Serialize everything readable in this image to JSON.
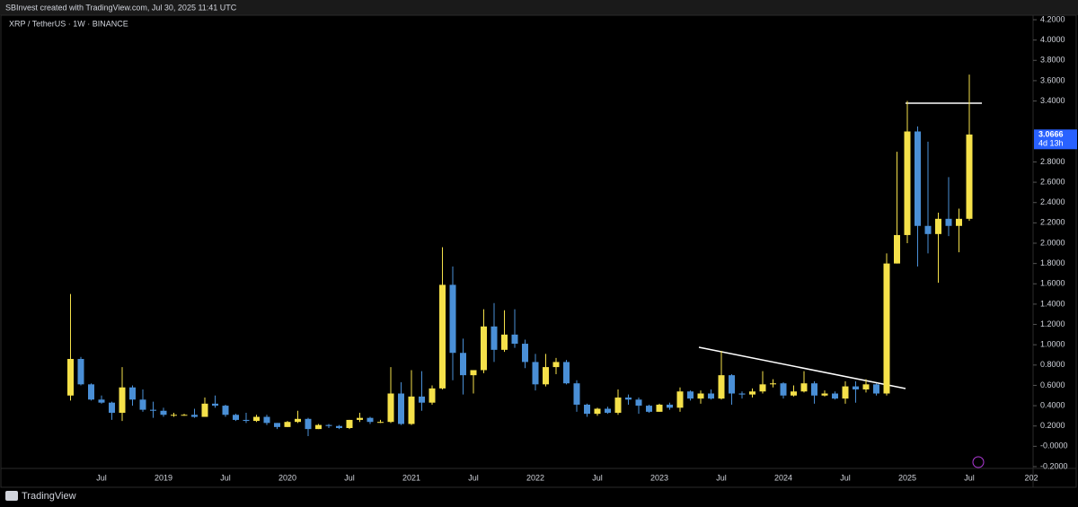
{
  "header": "SBInvest created with TradingView.com, Jul 30, 2025 11:41 UTC",
  "footer": "TradingView",
  "chart_data": {
    "type": "candlestick",
    "title": "XRP / TetherUS · 1W · BINANCE",
    "categories": [
      null,
      null,
      null,
      "Jul",
      null,
      null,
      null,
      null,
      null,
      "2019",
      null,
      null,
      null,
      null,
      null,
      "Jul",
      null,
      null,
      null,
      null,
      null,
      "2020",
      null,
      null,
      null,
      null,
      null,
      "Jul",
      null,
      null,
      null,
      null,
      null,
      "2021",
      null,
      null,
      null,
      null,
      null,
      "Jul",
      null,
      null,
      null,
      null,
      null,
      "2022",
      null,
      null,
      null,
      null,
      null,
      "Jul",
      null,
      null,
      null,
      null,
      null,
      "2023",
      null,
      null,
      null,
      null,
      null,
      "Jul",
      null,
      null,
      null,
      null,
      null,
      "2024",
      null,
      null,
      null,
      null,
      null,
      "Jul",
      null,
      null,
      null,
      null,
      null,
      "2025",
      null,
      null,
      null,
      null,
      null,
      "Jul",
      null,
      null,
      null,
      null,
      null,
      "202"
    ],
    "open": [
      0.5,
      0.86,
      0.61,
      0.46,
      0.43,
      0.33,
      0.58,
      0.46,
      0.36,
      0.35,
      0.31,
      0.31,
      0.31,
      0.29,
      0.42,
      0.4,
      0.31,
      0.26,
      0.25,
      0.29,
      0.23,
      0.19,
      0.24,
      0.27,
      0.17,
      0.21,
      0.2,
      0.18,
      0.26,
      0.28,
      0.24,
      0.24,
      0.52,
      0.22,
      0.49,
      0.43,
      0.57,
      1.59,
      0.92,
      0.7,
      0.75,
      1.18,
      0.95,
      1.1,
      1.01,
      0.83,
      0.61,
      0.78,
      0.83,
      0.62,
      0.41,
      0.32,
      0.37,
      0.33,
      0.48,
      0.46,
      0.4,
      0.34,
      0.41,
      0.38,
      0.54,
      0.47,
      0.52,
      0.47,
      0.7,
      0.52,
      0.51,
      0.54,
      0.61,
      0.62,
      0.5,
      0.54,
      0.62,
      0.5,
      0.52,
      0.47,
      0.59,
      0.56,
      0.61,
      0.52,
      1.8,
      2.08,
      3.1,
      2.17,
      2.09,
      2.24,
      2.17,
      2.24,
      null,
      null,
      null,
      null,
      null,
      null
    ],
    "high": [
      1.5,
      0.88,
      0.62,
      0.5,
      0.44,
      0.78,
      0.6,
      0.56,
      0.44,
      0.38,
      0.33,
      0.32,
      0.37,
      0.48,
      0.5,
      0.41,
      0.32,
      0.33,
      0.31,
      0.31,
      0.23,
      0.25,
      0.35,
      0.28,
      0.22,
      0.22,
      0.21,
      0.26,
      0.33,
      0.29,
      0.26,
      0.78,
      0.63,
      0.75,
      0.74,
      0.6,
      1.96,
      1.77,
      1.06,
      0.75,
      1.35,
      1.41,
      1.34,
      1.35,
      1.05,
      0.91,
      0.91,
      0.87,
      0.85,
      0.65,
      0.42,
      0.38,
      0.39,
      0.56,
      0.51,
      0.48,
      0.41,
      0.42,
      0.43,
      0.58,
      0.55,
      0.55,
      0.56,
      0.94,
      0.71,
      0.54,
      0.57,
      0.74,
      0.66,
      0.63,
      0.6,
      0.74,
      0.64,
      0.55,
      0.54,
      0.64,
      0.64,
      0.66,
      0.62,
      1.9,
      2.9,
      3.4,
      3.15,
      3.0,
      2.3,
      2.65,
      2.34,
      3.66,
      null,
      null,
      null,
      null,
      null,
      null
    ],
    "low": [
      0.45,
      0.6,
      0.45,
      0.42,
      0.26,
      0.25,
      0.4,
      0.34,
      0.28,
      0.29,
      0.29,
      0.3,
      0.28,
      0.29,
      0.38,
      0.29,
      0.25,
      0.23,
      0.24,
      0.21,
      0.17,
      0.19,
      0.23,
      0.1,
      0.17,
      0.18,
      0.17,
      0.17,
      0.24,
      0.22,
      0.23,
      0.23,
      0.21,
      0.21,
      0.35,
      0.41,
      0.56,
      0.65,
      0.51,
      0.52,
      0.72,
      0.83,
      0.93,
      0.97,
      0.77,
      0.55,
      0.59,
      0.71,
      0.61,
      0.34,
      0.29,
      0.3,
      0.32,
      0.31,
      0.41,
      0.32,
      0.33,
      0.34,
      0.36,
      0.34,
      0.45,
      0.42,
      0.46,
      0.46,
      0.41,
      0.47,
      0.48,
      0.52,
      0.58,
      0.47,
      0.49,
      0.53,
      0.42,
      0.49,
      0.46,
      0.42,
      0.43,
      0.53,
      0.5,
      0.5,
      1.8,
      2.0,
      1.77,
      1.9,
      1.61,
      2.07,
      1.91,
      2.22,
      null,
      null,
      null,
      null,
      null,
      null
    ],
    "close": [
      0.86,
      0.61,
      0.46,
      0.43,
      0.33,
      0.58,
      0.46,
      0.36,
      0.35,
      0.31,
      0.31,
      0.31,
      0.29,
      0.42,
      0.4,
      0.31,
      0.26,
      0.25,
      0.29,
      0.23,
      0.19,
      0.24,
      0.27,
      0.17,
      0.21,
      0.2,
      0.18,
      0.26,
      0.28,
      0.24,
      0.24,
      0.52,
      0.22,
      0.49,
      0.43,
      0.57,
      1.59,
      0.92,
      0.7,
      0.75,
      1.18,
      0.95,
      1.1,
      1.01,
      0.83,
      0.61,
      0.78,
      0.83,
      0.62,
      0.41,
      0.32,
      0.37,
      0.33,
      0.48,
      0.46,
      0.4,
      0.34,
      0.41,
      0.38,
      0.54,
      0.47,
      0.52,
      0.47,
      0.7,
      0.52,
      0.51,
      0.54,
      0.61,
      0.62,
      0.5,
      0.54,
      0.62,
      0.5,
      0.52,
      0.47,
      0.59,
      0.56,
      0.61,
      0.52,
      1.8,
      2.08,
      3.1,
      2.17,
      2.09,
      2.24,
      2.17,
      2.24,
      3.07,
      null,
      null,
      null,
      null,
      null,
      null
    ],
    "up_color": "#f5e14a",
    "down_color": "#4a8fd6",
    "ylim": [
      -0.2,
      4.2
    ],
    "yticks": [
      {
        "value": -0.2,
        "label": "-0.2000"
      },
      {
        "value": 0,
        "label": "-0.0000"
      },
      {
        "value": 0.2,
        "label": "0.2000"
      },
      {
        "value": 0.4,
        "label": "0.4000"
      },
      {
        "value": 0.6,
        "label": "0.6000"
      },
      {
        "value": 0.8,
        "label": "0.8000"
      },
      {
        "value": 1.0,
        "label": "1.0000"
      },
      {
        "value": 1.2,
        "label": "1.2000"
      },
      {
        "value": 1.4,
        "label": "1.4000"
      },
      {
        "value": 1.6,
        "label": "1.6000"
      },
      {
        "value": 1.8,
        "label": "1.8000"
      },
      {
        "value": 2.0,
        "label": "2.0000"
      },
      {
        "value": 2.2,
        "label": "2.2000"
      },
      {
        "value": 2.4,
        "label": "2.4000"
      },
      {
        "value": 2.6,
        "label": "2.6000"
      },
      {
        "value": 2.8,
        "label": "2.8000"
      },
      {
        "value": 3.4,
        "label": "3.4000"
      },
      {
        "value": 3.6,
        "label": "3.6000"
      },
      {
        "value": 3.8,
        "label": "3.8000"
      },
      {
        "value": 4.0,
        "label": "4.0000"
      },
      {
        "value": 4.2,
        "label": "4.2000"
      }
    ],
    "last_price": 3.0666,
    "countdown": "4d 13h",
    "last_price_color": "#2962ff"
  }
}
